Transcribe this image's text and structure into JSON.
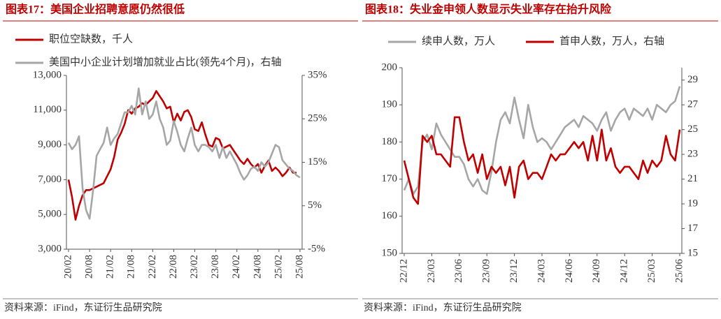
{
  "chart_data": [
    {
      "type": "line",
      "title": "图表17：美国企业招聘意愿仍然很低",
      "source": "资料来源：iFind，东证衍生品研究院",
      "categories": [
        "20/02",
        null,
        null,
        null,
        null,
        null,
        "20/08",
        null,
        null,
        null,
        null,
        null,
        "21/02",
        null,
        null,
        null,
        null,
        null,
        "21/08",
        null,
        null,
        null,
        null,
        null,
        "22/02",
        null,
        null,
        null,
        null,
        null,
        "22/08",
        null,
        null,
        null,
        null,
        null,
        "23/02",
        null,
        null,
        null,
        null,
        null,
        "23/08",
        null,
        null,
        null,
        null,
        null,
        "24/02",
        null,
        null,
        null,
        null,
        null,
        "24/08",
        null,
        null,
        null,
        null,
        null,
        "25/02",
        null,
        null,
        null,
        null,
        null,
        "25/08"
      ],
      "ylim": [
        3000,
        13000
      ],
      "yticks": [
        {
          "value": 3000,
          "label": "3,000"
        },
        {
          "value": 5000,
          "label": "5,000"
        },
        {
          "value": 7000,
          "label": "7,000"
        },
        {
          "value": 9000,
          "label": "9,000"
        },
        {
          "value": 11000,
          "label": "11,000"
        },
        {
          "value": 13000,
          "label": "13,000"
        }
      ],
      "y2lim": [
        -5,
        35
      ],
      "y2ticks": [
        {
          "value": -5,
          "label": "-5%"
        },
        {
          "value": 5,
          "label": "5%"
        },
        {
          "value": 15,
          "label": "15%"
        },
        {
          "value": 25,
          "label": "25%"
        },
        {
          "value": 35,
          "label": "35%"
        }
      ],
      "grid": false,
      "series": [
        {
          "name": "职位空缺数，千人",
          "color": "#c00000",
          "values": [
            7000,
            6000,
            4700,
            5500,
            6100,
            6400,
            6400,
            6500,
            6600,
            6700,
            6800,
            7200,
            7600,
            8300,
            9300,
            9700,
            10200,
            11000,
            10800,
            11100,
            11200,
            11400,
            11300,
            11500,
            11700,
            12100,
            11800,
            11500,
            11100,
            11200,
            10300,
            10800,
            10400,
            10900,
            11000,
            10600,
            9900,
            9800,
            10300,
            9600,
            9000,
            8900,
            9400,
            9300,
            8800,
            8900,
            9000,
            8700,
            8400,
            8100,
            7900,
            8200,
            7900,
            7700,
            7900,
            7400,
            7800,
            8100,
            7500,
            7700,
            7500,
            7200,
            7400,
            7700,
            7400,
            7400,
            null
          ]
        },
        {
          "name": "美国中小企业计划增加就业占比(领先4个月)，右轴",
          "color": "#a6a6a6",
          "axis": "y2",
          "values": [
            19.5,
            18,
            19,
            21,
            9,
            4,
            2,
            8.5,
            16.5,
            18,
            19.5,
            23,
            19,
            20.5,
            21.5,
            24,
            26.5,
            26.5,
            28,
            26,
            32,
            26,
            29,
            25,
            26,
            29,
            25,
            23,
            19,
            20,
            24.5,
            22,
            19,
            17.5,
            20.5,
            23,
            19,
            17.5,
            19,
            19,
            18.5,
            17.5,
            19,
            16,
            18.5,
            16,
            17.5,
            16,
            14.5,
            12.5,
            11,
            12,
            13.5,
            14,
            13,
            15,
            14,
            15,
            17,
            19,
            18.5,
            15.5,
            14.5,
            13.5,
            13,
            12,
            11.5
          ]
        }
      ]
    },
    {
      "type": "line",
      "title": "图表18：失业金申领人数显示失业率存在抬升风险",
      "source": "资料来源：iFind，东证衍生品研究院",
      "categories": [
        "22/12",
        null,
        null,
        null,
        null,
        null,
        "23/03",
        null,
        null,
        null,
        null,
        null,
        "23/06",
        null,
        null,
        null,
        null,
        null,
        "23/09",
        null,
        null,
        null,
        null,
        null,
        "23/12",
        null,
        null,
        null,
        null,
        null,
        "24/03",
        null,
        null,
        null,
        null,
        null,
        "24/06",
        null,
        null,
        null,
        null,
        null,
        "24/09",
        null,
        null,
        null,
        null,
        null,
        "24/12",
        null,
        null,
        null,
        null,
        null,
        "25/03",
        null,
        null,
        null,
        null,
        null,
        "25/06"
      ],
      "ylim": [
        150,
        200
      ],
      "yticks": [
        150,
        160,
        170,
        180,
        190,
        200
      ],
      "y2lim": [
        15,
        30
      ],
      "y2ticks": [
        15,
        17,
        19,
        21,
        23,
        25,
        27,
        29
      ],
      "grid": false,
      "series": [
        {
          "name": "续申人数，万人",
          "color": "#a6a6a6",
          "values": [
            167,
            170,
            166,
            168,
            180,
            182,
            178,
            185,
            182,
            180,
            178,
            176,
            176,
            174,
            170,
            168,
            170,
            167,
            166,
            172,
            180,
            186,
            188,
            185,
            192,
            186,
            181,
            190,
            184,
            180,
            181,
            180,
            178,
            180,
            182,
            184,
            185,
            186,
            184,
            187,
            186,
            185,
            183,
            186,
            188,
            183,
            186,
            188,
            189,
            186,
            189,
            188,
            187,
            189,
            186,
            190,
            189,
            188,
            190,
            191,
            195
          ]
        },
        {
          "name": "首申人数，万人，右轴",
          "color": "#c00000",
          "axis": "y2",
          "values": [
            22.5,
            21,
            19.5,
            19,
            24.5,
            24,
            24.5,
            23,
            23,
            22.5,
            22,
            26,
            26,
            24,
            22.5,
            23,
            21.5,
            23,
            21,
            22,
            21.5,
            22,
            20.5,
            22,
            19.5,
            22,
            22.5,
            21,
            21.5,
            21.5,
            21,
            22,
            23,
            22.5,
            23,
            23,
            23.5,
            24,
            23.5,
            24,
            22.5,
            24.5,
            22.5,
            25,
            22.5,
            23.5,
            22,
            21.5,
            22,
            22,
            21.5,
            21,
            22.5,
            21.5,
            22.5,
            22,
            22.5,
            24.5,
            23,
            22.5,
            25
          ]
        }
      ]
    }
  ]
}
